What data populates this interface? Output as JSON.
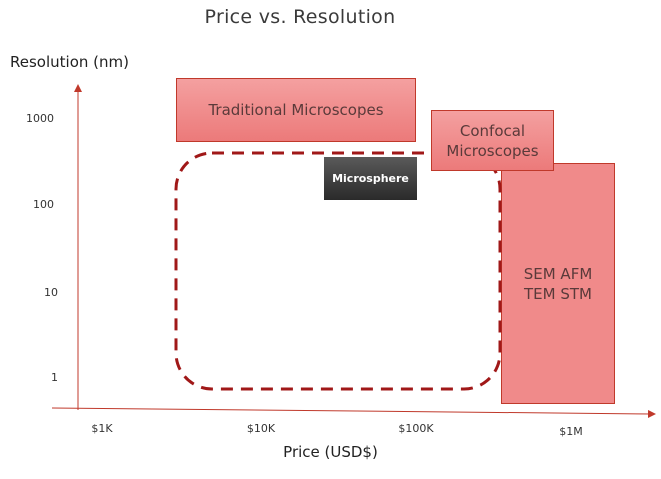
{
  "title": "Price vs. Resolution",
  "y_axis_label": "Resolution (nm)",
  "x_axis_label": "Price  (USD$)",
  "y_ticks": [
    "1000",
    "100",
    "10",
    "1"
  ],
  "x_ticks": [
    "$1K",
    "$10K",
    "$100K",
    "$1M"
  ],
  "regions": {
    "traditional": "Traditional Microscopes",
    "confocal_line1": "Confocal",
    "confocal_line2": "Microscopes",
    "microsphere": "Microsphere",
    "sem_line1": "SEM AFM",
    "sem_line2": "TEM STM"
  },
  "colors": {
    "axis": "#c0392b",
    "region_fill": "#f08a8a",
    "dashed_outline": "#a01818",
    "microsphere_fill": "#3a3a3a"
  }
}
